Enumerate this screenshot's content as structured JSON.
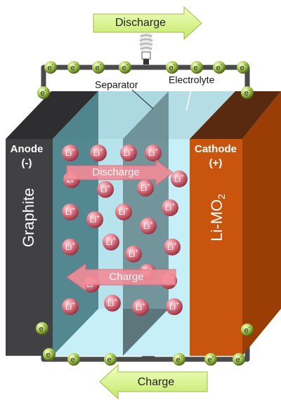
{
  "top_arrow": "Discharge",
  "bottom_arrow": "Charge",
  "separator_label": "Separator",
  "electrolyte_label": "Electrolyte",
  "anode": {
    "name": "Anode",
    "sign": "(-)",
    "material": "Graphite"
  },
  "cathode": {
    "name": "Cathode",
    "sign": "(+)",
    "material": {
      "text": "Li-MO",
      "sub": "2"
    }
  },
  "inner_discharge": "Discharge",
  "inner_charge": "Charge",
  "ion": {
    "symbol": "Li",
    "charge": "+"
  },
  "electron": {
    "symbol": "e",
    "charge": "-"
  }
}
